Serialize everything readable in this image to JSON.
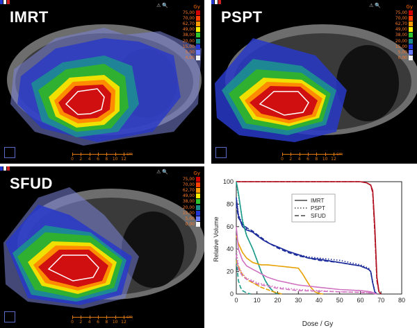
{
  "panels": [
    {
      "label": "IMRT"
    },
    {
      "label": "PSPT"
    },
    {
      "label": "SFUD"
    }
  ],
  "colorbar": {
    "unit": "Gy",
    "values": [
      "75,00",
      "70,00",
      "62,70",
      "49,00",
      "38,00",
      "20,00",
      "15,00",
      "5,00",
      "0,00"
    ],
    "colors": [
      "#d20000",
      "#ff4000",
      "#ff9a00",
      "#ffee00",
      "#2ec22e",
      "#1a8a8a",
      "#2438d8",
      "#6c7cff",
      "#f2f2f2"
    ]
  },
  "ruler": {
    "unit": "cm",
    "ticks": [
      "0",
      "2",
      "4",
      "6",
      "8",
      "10",
      "12"
    ]
  },
  "chart_data": {
    "type": "line",
    "xlabel": "Dose / Gy",
    "ylabel": "Relative Volume",
    "xlim": [
      0,
      80
    ],
    "ylim": [
      0,
      100
    ],
    "xticks": [
      0,
      10,
      20,
      30,
      40,
      50,
      60,
      70,
      80
    ],
    "yticks": [
      0,
      20,
      40,
      60,
      80,
      100
    ],
    "grid": false,
    "legend_position": "top-center",
    "legend": [
      {
        "name": "IMRT",
        "style": "solid"
      },
      {
        "name": "PSPT",
        "style": "dotted"
      },
      {
        "name": "SFUD",
        "style": "dashed"
      }
    ],
    "series": [
      {
        "structure": "target-red",
        "color": "#b01020",
        "style": "solid",
        "x": [
          0,
          60,
          63,
          65,
          66,
          67,
          68,
          69,
          70
        ],
        "y": [
          100,
          100,
          99,
          97,
          92,
          60,
          15,
          2,
          0
        ]
      },
      {
        "structure": "target-red",
        "color": "#b01020",
        "style": "dotted",
        "x": [
          0,
          60,
          63,
          65,
          66,
          67,
          68,
          69,
          70
        ],
        "y": [
          100,
          100,
          99,
          97,
          92,
          55,
          12,
          2,
          0
        ]
      },
      {
        "structure": "target-red",
        "color": "#b01020",
        "style": "dashed",
        "x": [
          0,
          60,
          63,
          65,
          66,
          67,
          68,
          69,
          70
        ],
        "y": [
          100,
          100,
          99,
          97,
          90,
          55,
          12,
          2,
          0
        ]
      },
      {
        "structure": "blue",
        "color": "#1a2a9a",
        "style": "solid",
        "x": [
          0,
          1,
          3,
          5,
          8,
          10,
          13,
          16,
          20,
          25,
          30,
          35,
          40,
          50,
          60,
          64,
          65,
          66,
          67,
          68
        ],
        "y": [
          85,
          70,
          60,
          57,
          55,
          52,
          48,
          45,
          42,
          38,
          35,
          32,
          31,
          28,
          25,
          22,
          20,
          10,
          2,
          0
        ]
      },
      {
        "structure": "blue",
        "color": "#1a2a9a",
        "style": "dotted",
        "x": [
          0,
          1,
          3,
          5,
          8,
          10,
          13,
          16,
          20,
          25,
          30,
          35,
          40,
          50,
          60,
          64,
          65,
          66,
          67,
          68
        ],
        "y": [
          86,
          71,
          62,
          58,
          55,
          52,
          48,
          45,
          42,
          38,
          35,
          33,
          32,
          30,
          26,
          23,
          20,
          10,
          2,
          0
        ]
      },
      {
        "structure": "blue",
        "color": "#1a2a9a",
        "style": "dashed",
        "x": [
          0,
          1,
          3,
          5,
          8,
          10,
          13,
          16,
          20,
          25,
          30,
          35,
          40,
          50,
          60,
          64,
          65,
          66,
          67,
          68
        ],
        "y": [
          80,
          68,
          62,
          59,
          56,
          53,
          49,
          45,
          41,
          37,
          34,
          32,
          30,
          28,
          25,
          22,
          20,
          10,
          2,
          0
        ]
      },
      {
        "structure": "teal",
        "color": "#1a9a8a",
        "style": "solid",
        "x": [
          0,
          1,
          3,
          5,
          8,
          10,
          12,
          14,
          16,
          18,
          20
        ],
        "y": [
          100,
          90,
          65,
          52,
          40,
          30,
          20,
          12,
          6,
          2,
          0
        ]
      },
      {
        "structure": "teal",
        "color": "#1a9a8a",
        "style": "dotted",
        "x": [
          0,
          1,
          3,
          5,
          8,
          10,
          12,
          14,
          16,
          18,
          20
        ],
        "y": [
          98,
          88,
          66,
          52,
          40,
          30,
          20,
          12,
          6,
          2,
          0
        ]
      },
      {
        "structure": "teal",
        "color": "#1a9a8a",
        "style": "dashed",
        "x": [
          0,
          1,
          2,
          3,
          4,
          5,
          6,
          7
        ],
        "y": [
          30,
          12,
          6,
          3,
          2,
          1,
          0.5,
          0
        ]
      },
      {
        "structure": "orange",
        "color": "#e8a000",
        "style": "solid",
        "x": [
          0,
          1,
          3,
          5,
          8,
          10,
          12,
          15,
          20,
          25,
          30,
          32,
          34,
          36,
          38,
          40,
          42
        ],
        "y": [
          52,
          45,
          37,
          32,
          28,
          27,
          26,
          26,
          25,
          24,
          23,
          18,
          12,
          6,
          2,
          0.5,
          0
        ]
      },
      {
        "structure": "orange",
        "color": "#e8a000",
        "style": "dotted",
        "x": [
          0,
          2,
          4,
          6,
          8,
          10,
          12,
          15,
          18,
          20,
          22
        ],
        "y": [
          28,
          20,
          15,
          12,
          10,
          8,
          6,
          4,
          2,
          1,
          0
        ]
      },
      {
        "structure": "orange",
        "color": "#e8a000",
        "style": "dashed",
        "x": [
          0,
          2,
          4,
          6,
          8,
          10,
          12,
          15,
          18,
          20,
          22
        ],
        "y": [
          30,
          20,
          15,
          12,
          10,
          8,
          6,
          4,
          2,
          1,
          0
        ]
      },
      {
        "structure": "pink",
        "color": "#d070c0",
        "style": "solid",
        "x": [
          0,
          1,
          3,
          5,
          8,
          10,
          15,
          20,
          25,
          30,
          40,
          50,
          60,
          65,
          68
        ],
        "y": [
          60,
          40,
          30,
          25,
          22,
          20,
          15,
          12,
          10,
          8,
          6,
          4,
          3,
          2,
          0
        ]
      },
      {
        "structure": "pink",
        "color": "#d070c0",
        "style": "dotted",
        "x": [
          0,
          1,
          3,
          5,
          8,
          10,
          15,
          20,
          25,
          30,
          40,
          50,
          60,
          65,
          68
        ],
        "y": [
          40,
          25,
          18,
          14,
          12,
          10,
          8,
          6,
          5,
          4,
          3,
          2,
          1.5,
          1,
          0
        ]
      },
      {
        "structure": "pink",
        "color": "#d070c0",
        "style": "dashed",
        "x": [
          0,
          1,
          3,
          5,
          8,
          10,
          15,
          20,
          25,
          30,
          40,
          50,
          60,
          65,
          68
        ],
        "y": [
          35,
          22,
          16,
          13,
          11,
          9,
          7,
          5,
          4,
          3,
          2.5,
          2,
          1.5,
          1,
          0
        ]
      }
    ]
  }
}
